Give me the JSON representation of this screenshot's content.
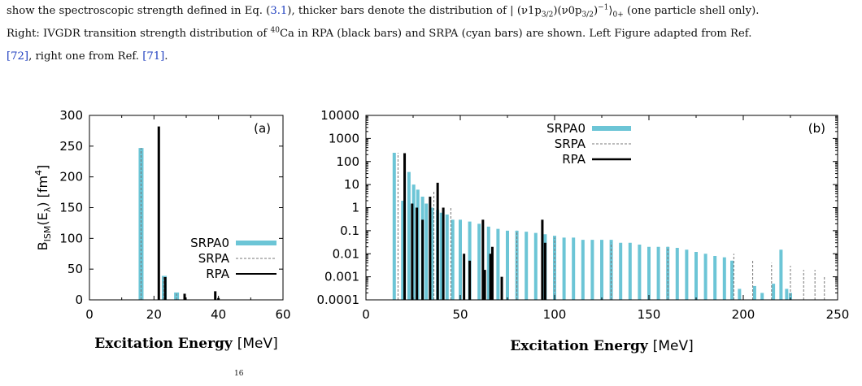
{
  "caption": {
    "line1_prefix": "show the spectroscopic strength defined in Eq. (",
    "line1_ref": "3.1",
    "line1_mid": "), thicker bars denote the distribution of | ",
    "line1_formula": "(ν1p3/2)(ν0p3/2)−1⟩0+",
    "line1_suffix": " (one particle shell only).",
    "line2_prefix": "Right: IVGDR transition strength distribution of ",
    "line2_isotope_mass": "40",
    "line2_mid": "Ca in RPA (black bars) and SRPA (cyan bars) are shown. Left Figure adapted from Ref.",
    "line3_ref1": "[72]",
    "line3_mid": ", right one from Ref. ",
    "line3_ref2": "[71]",
    "line3_end": "."
  },
  "bottom_fragment": "16",
  "colors": {
    "srpa0": "#6cc5d6",
    "rpa": "#000000",
    "srpa": "#777777",
    "axis": "#000000"
  },
  "chart_data": [
    {
      "type": "bar",
      "panel_label": "(a)",
      "xlabel_bold": "Excitation Energy",
      "xlabel_unit": "[MeV]",
      "ylabel": "B_ISM(E_λ) [fm^4]",
      "xlim": [
        0,
        60
      ],
      "ylim": [
        0,
        300
      ],
      "xticks": [
        "0",
        "20",
        "40",
        "60"
      ],
      "yticks": [
        "0",
        "50",
        "100",
        "150",
        "200",
        "250",
        "300"
      ],
      "legend_position": "right-middle",
      "series": [
        {
          "name": "SRPA0",
          "style": "cyan-thick",
          "points": [
            [
              16,
              247
            ],
            [
              23.2,
              39
            ],
            [
              27,
              12
            ]
          ]
        },
        {
          "name": "SRPA",
          "style": "gray-dashed",
          "points": [
            [
              16,
              247
            ],
            [
              23,
              38
            ],
            [
              27,
              10
            ]
          ]
        },
        {
          "name": "RPA",
          "style": "black-thin",
          "points": [
            [
              21.5,
              282
            ],
            [
              23.5,
              37
            ],
            [
              29.5,
              10
            ],
            [
              39,
              14
            ],
            [
              40,
              3
            ]
          ]
        }
      ]
    },
    {
      "type": "bar",
      "panel_label": "(b)",
      "xlabel_bold": "Excitation Energy",
      "xlabel_unit": "[MeV]",
      "ylabel": "",
      "xlim": [
        0,
        250
      ],
      "ylim": [
        0.0001,
        10000
      ],
      "yscale": "log",
      "xticks": [
        "0",
        "50",
        "100",
        "150",
        "200",
        "250"
      ],
      "yticks": [
        "0.0001",
        "0.001",
        "0.01",
        "0.1",
        "1",
        "10",
        "100",
        "1000",
        "10000"
      ],
      "legend_position": "top-center",
      "series": [
        {
          "name": "SRPA0",
          "style": "cyan-thick",
          "points": [
            [
              15,
              240
            ],
            [
              19.5,
              2
            ],
            [
              22.8,
              35
            ],
            [
              25.3,
              10
            ],
            [
              27.5,
              6
            ],
            [
              30,
              3
            ],
            [
              32,
              1.5
            ],
            [
              35,
              1
            ],
            [
              38,
              0.8
            ],
            [
              40,
              0.6
            ],
            [
              43,
              0.5
            ],
            [
              46,
              0.3
            ],
            [
              50,
              0.3
            ],
            [
              55,
              0.25
            ],
            [
              60,
              0.2
            ],
            [
              65,
              0.15
            ],
            [
              70,
              0.12
            ],
            [
              75,
              0.1
            ],
            [
              80,
              0.1
            ],
            [
              85,
              0.09
            ],
            [
              90,
              0.08
            ],
            [
              95,
              0.07
            ],
            [
              100,
              0.06
            ],
            [
              105,
              0.05
            ],
            [
              110,
              0.05
            ],
            [
              115,
              0.04
            ],
            [
              120,
              0.04
            ],
            [
              125,
              0.04
            ],
            [
              130,
              0.04
            ],
            [
              135,
              0.03
            ],
            [
              140,
              0.03
            ],
            [
              145,
              0.025
            ],
            [
              150,
              0.02
            ],
            [
              155,
              0.02
            ],
            [
              160,
              0.02
            ],
            [
              165,
              0.018
            ],
            [
              170,
              0.015
            ],
            [
              175,
              0.012
            ],
            [
              180,
              0.01
            ],
            [
              185,
              0.008
            ],
            [
              190,
              0.007
            ],
            [
              194,
              0.005
            ],
            [
              198,
              0.0003
            ],
            [
              206,
              0.0004
            ],
            [
              210,
              0.0002
            ],
            [
              216,
              0.0005
            ],
            [
              220,
              0.015
            ],
            [
              223,
              0.0003
            ],
            [
              225,
              0.0002
            ]
          ]
        },
        {
          "name": "SRPA",
          "style": "gray-dashed",
          "points": [
            [
              17,
              240
            ],
            [
              36,
              5
            ],
            [
              45,
              1
            ],
            [
              62,
              0.3
            ],
            [
              80,
              0.1
            ],
            [
              100,
              0.05
            ],
            [
              130,
              0.03
            ],
            [
              160,
              0.02
            ],
            [
              195,
              0.01
            ],
            [
              205,
              0.005
            ],
            [
              215,
              0.004
            ],
            [
              225,
              0.003
            ],
            [
              232,
              0.002
            ],
            [
              238,
              0.002
            ],
            [
              243,
              0.001
            ]
          ]
        },
        {
          "name": "RPA",
          "style": "black-thick",
          "points": [
            [
              20.5,
              230
            ],
            [
              24.5,
              1.5
            ],
            [
              27,
              1
            ],
            [
              30,
              0.3
            ],
            [
              34,
              3
            ],
            [
              38,
              12
            ],
            [
              41,
              1
            ],
            [
              52,
              0.01
            ],
            [
              55,
              0.005
            ],
            [
              62,
              0.3
            ],
            [
              63,
              0.002
            ],
            [
              66,
              0.01
            ],
            [
              67,
              0.02
            ],
            [
              72,
              0.001
            ],
            [
              93.5,
              0.3
            ],
            [
              95,
              0.03
            ]
          ]
        }
      ]
    }
  ]
}
